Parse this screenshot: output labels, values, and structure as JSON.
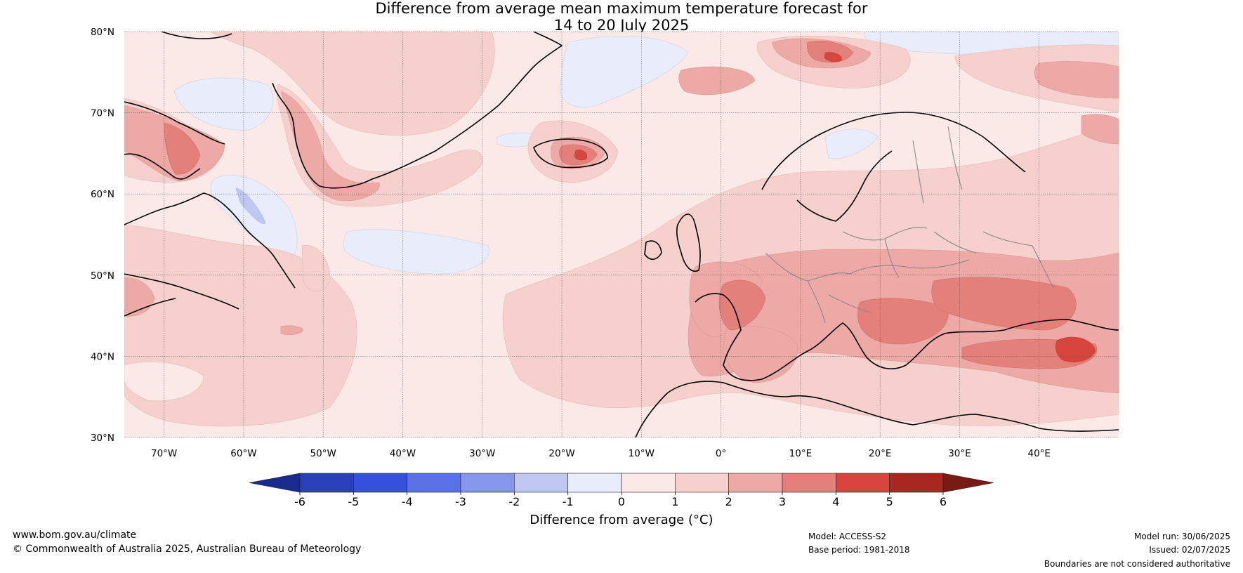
{
  "title": {
    "line1": "Difference from average mean maximum temperature forecast for",
    "line2": "14 to 20 July 2025"
  },
  "map": {
    "lat_labels": [
      "80°N",
      "70°N",
      "60°N",
      "50°N",
      "40°N",
      "30°N"
    ],
    "lon_labels": [
      "70°W",
      "60°W",
      "50°W",
      "40°W",
      "30°W",
      "20°W",
      "10°W",
      "0°",
      "10°E",
      "20°E",
      "30°E",
      "40°E"
    ],
    "extent": {
      "lon_min": -75,
      "lon_max": 50,
      "lat_min": 30,
      "lat_max": 80
    },
    "gridlines": true
  },
  "colorbar": {
    "ticks": [
      "-6",
      "-5",
      "-4",
      "-3",
      "-2",
      "-1",
      "0",
      "1",
      "2",
      "3",
      "4",
      "5",
      "6"
    ],
    "colors": [
      "#1a2b8f",
      "#2a40b8",
      "#3450dc",
      "#5a72e6",
      "#8597eb",
      "#bfc8f3",
      "#e8ecfb",
      "#fbe9e7",
      "#f5d0cd",
      "#eda9a6",
      "#e3807a",
      "#d6463d",
      "#a8271f",
      "#7a1a15"
    ],
    "label": "Difference from average (°C)"
  },
  "footer": {
    "website": "www.bom.gov.au/climate",
    "copyright": "© Commonwealth of Australia 2025, Australian Bureau of Meteorology",
    "model": "Model: ACCESS-S2",
    "base_period": "Base period: 1981-2018",
    "model_run": "Model run: 30/06/2025",
    "issued": "Issued: 02/07/2025",
    "disclaimer": "Boundaries are not considered authoritative"
  }
}
